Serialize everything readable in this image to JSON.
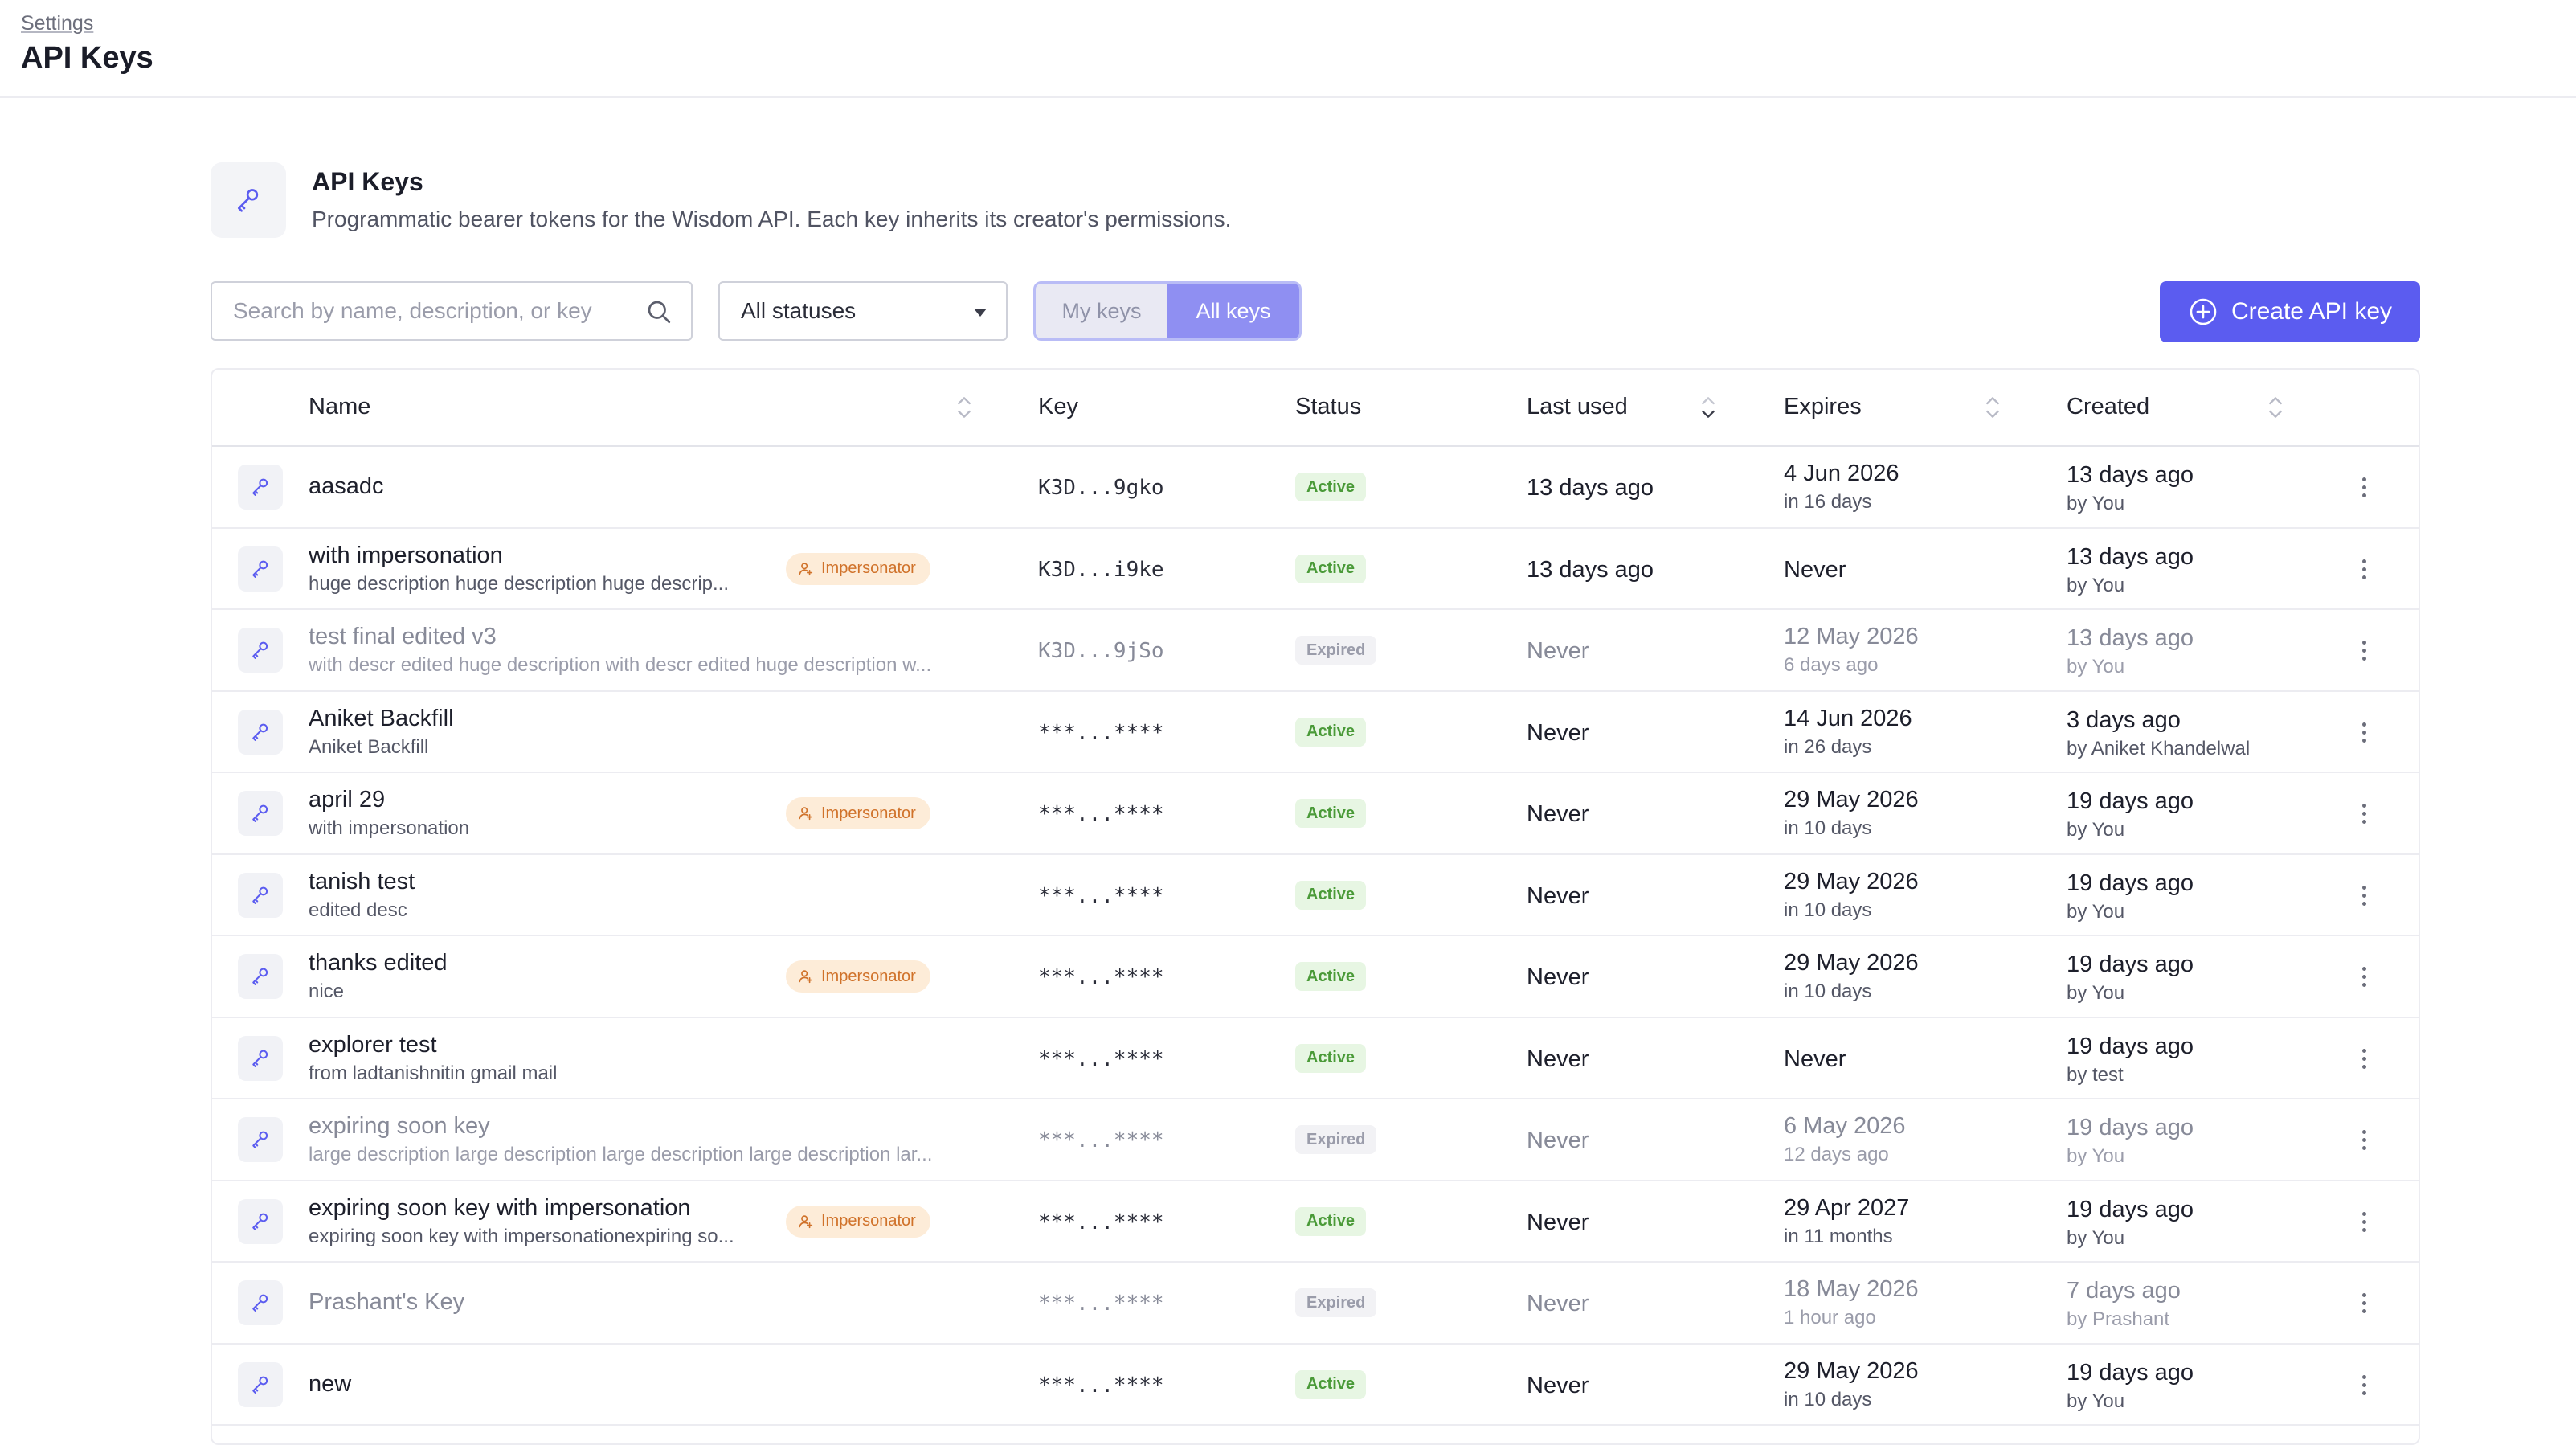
{
  "breadcrumb": "Settings",
  "page_title": "API Keys",
  "section": {
    "title": "API Keys",
    "description": "Programmatic bearer tokens for the Wisdom API. Each key inherits its creator's permissions."
  },
  "toolbar": {
    "search_placeholder": "Search by name, description, or key",
    "status_filter": "All statuses",
    "segments": [
      "My keys",
      "All keys"
    ],
    "active_segment": "All keys",
    "create_label": "Create API key"
  },
  "colors": {
    "accent": "#5b5cf0",
    "active_status": "#4a9a38",
    "impersonator": "#d0722a"
  },
  "table": {
    "columns": [
      "Name",
      "Key",
      "Status",
      "Last used",
      "Expires",
      "Created"
    ],
    "rows": [
      {
        "name": "aasadc",
        "desc": "",
        "impersonator": false,
        "key": "K3D...9gko",
        "status": "Active",
        "last_used": "13 days ago",
        "expires": "4 Jun 2026",
        "expires_rel": "in 16 days",
        "created": "13 days ago",
        "created_by": "by You"
      },
      {
        "name": "with impersonation",
        "desc": "huge description huge description huge descrip...",
        "impersonator": true,
        "key": "K3D...i9ke",
        "status": "Active",
        "last_used": "13 days ago",
        "expires": "Never",
        "expires_rel": "",
        "created": "13 days ago",
        "created_by": "by You"
      },
      {
        "name": "test final edited v3",
        "desc": "with descr edited huge description with descr edited huge description w...",
        "impersonator": false,
        "key": "K3D...9jSo",
        "status": "Expired",
        "last_used": "Never",
        "expires": "12 May 2026",
        "expires_rel": "6 days ago",
        "created": "13 days ago",
        "created_by": "by You"
      },
      {
        "name": "Aniket Backfill",
        "desc": "Aniket Backfill",
        "impersonator": false,
        "key": "***...****",
        "status": "Active",
        "last_used": "Never",
        "expires": "14 Jun 2026",
        "expires_rel": "in 26 days",
        "created": "3 days ago",
        "created_by": "by Aniket Khandelwal"
      },
      {
        "name": "april 29",
        "desc": "with impersonation",
        "impersonator": true,
        "key": "***...****",
        "status": "Active",
        "last_used": "Never",
        "expires": "29 May 2026",
        "expires_rel": "in 10 days",
        "created": "19 days ago",
        "created_by": "by You"
      },
      {
        "name": "tanish test",
        "desc": "edited desc",
        "impersonator": false,
        "key": "***...****",
        "status": "Active",
        "last_used": "Never",
        "expires": "29 May 2026",
        "expires_rel": "in 10 days",
        "created": "19 days ago",
        "created_by": "by You"
      },
      {
        "name": "thanks edited",
        "desc": "nice",
        "impersonator": true,
        "key": "***...****",
        "status": "Active",
        "last_used": "Never",
        "expires": "29 May 2026",
        "expires_rel": "in 10 days",
        "created": "19 days ago",
        "created_by": "by You"
      },
      {
        "name": "explorer test",
        "desc": "from ladtanishnitin gmail mail",
        "impersonator": false,
        "key": "***...****",
        "status": "Active",
        "last_used": "Never",
        "expires": "Never",
        "expires_rel": "",
        "created": "19 days ago",
        "created_by": "by test"
      },
      {
        "name": "expiring soon key",
        "desc": "large description large description large description large description lar...",
        "impersonator": false,
        "key": "***...****",
        "status": "Expired",
        "last_used": "Never",
        "expires": "6 May 2026",
        "expires_rel": "12 days ago",
        "created": "19 days ago",
        "created_by": "by You"
      },
      {
        "name": "expiring soon key with impersonation",
        "desc": "expiring soon key with impersonationexpiring so...",
        "impersonator": true,
        "key": "***...****",
        "status": "Active",
        "last_used": "Never",
        "expires": "29 Apr 2027",
        "expires_rel": "in 11 months",
        "created": "19 days ago",
        "created_by": "by You"
      },
      {
        "name": "Prashant's Key",
        "desc": "",
        "impersonator": false,
        "key": "***...****",
        "status": "Expired",
        "last_used": "Never",
        "expires": "18 May 2026",
        "expires_rel": "1 hour ago",
        "created": "7 days ago",
        "created_by": "by Prashant"
      },
      {
        "name": "new",
        "desc": "",
        "impersonator": false,
        "key": "***...****",
        "status": "Active",
        "last_used": "Never",
        "expires": "29 May 2026",
        "expires_rel": "in 10 days",
        "created": "19 days ago",
        "created_by": "by You"
      }
    ],
    "impersonator_label": "Impersonator"
  }
}
